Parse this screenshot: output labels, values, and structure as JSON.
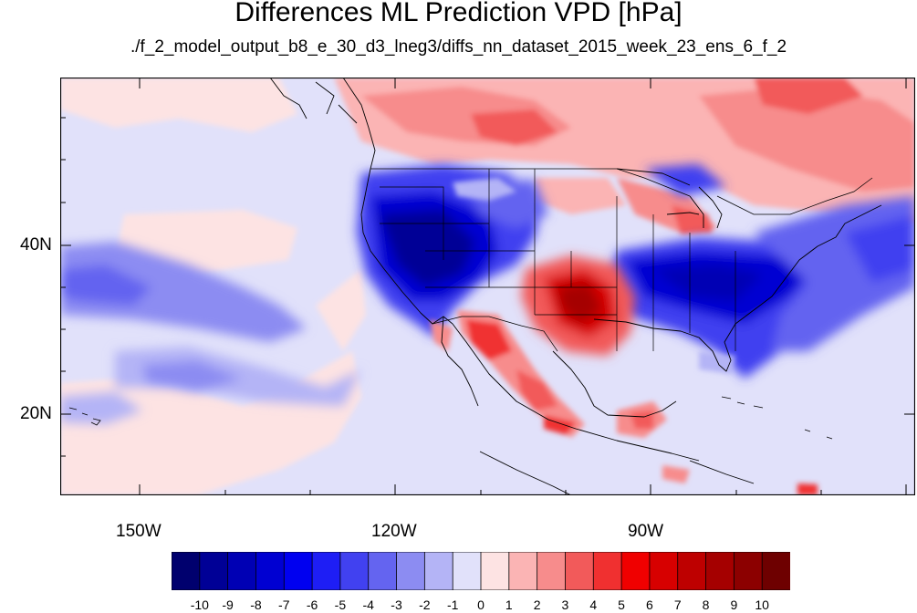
{
  "title": "Differences ML Prediction VPD [hPa]",
  "subtitle": "./f_2_model_output_b8_e_30_d3_lneg3/diffs_nn_dataset_2015_week_23_ens_6_f_2",
  "axes": {
    "lat_ticks": [
      "40N",
      "20N"
    ],
    "lon_ticks": [
      "150W",
      "120W",
      "90W"
    ]
  },
  "colorbar": {
    "colors": [
      "#00006e",
      "#000096",
      "#0000b4",
      "#0000d2",
      "#0000f0",
      "#1e1ef5",
      "#4141f0",
      "#6464f0",
      "#8c8cf2",
      "#b4b4f6",
      "#e1e1fa",
      "#fde3e3",
      "#fbb4b4",
      "#f78c8c",
      "#f25a5a",
      "#f03030",
      "#f00000",
      "#d70000",
      "#be0000",
      "#a50000",
      "#8c0000",
      "#6e0000"
    ],
    "labels": [
      "-10",
      "-9",
      "-8",
      "-7",
      "-6",
      "-5",
      "-4",
      "-3",
      "-2",
      "-1",
      "0",
      "1",
      "2",
      "3",
      "4",
      "5",
      "6",
      "7",
      "8",
      "9",
      "10"
    ]
  }
}
